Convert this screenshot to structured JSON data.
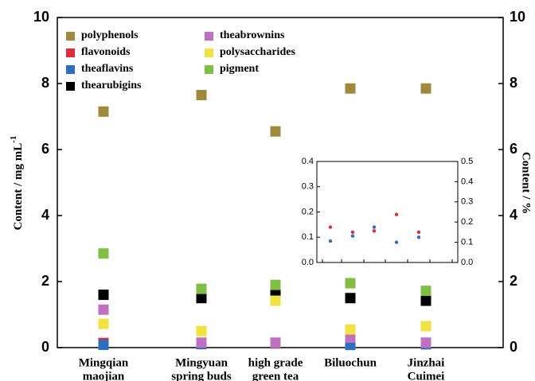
{
  "chart_data": [
    {
      "type": "scatter",
      "categories": [
        [
          "Mingqian",
          "maojian"
        ],
        [
          "Mingyuan",
          "spring buds"
        ],
        [
          "high grade",
          "green tea"
        ],
        [
          "Biluochun"
        ],
        [
          "Jinzhai",
          "Cuimei"
        ]
      ],
      "ylabel": "Content / mg mL",
      "ylabel_superscript": "-1",
      "y2label": "Content / %",
      "ylim": [
        0,
        10
      ],
      "yticks": [
        0,
        2,
        4,
        6,
        8,
        10
      ],
      "y2lim": [
        0,
        10
      ],
      "y2ticks": [
        0,
        2,
        4,
        6,
        8,
        10
      ],
      "series": [
        {
          "name": "polyphenols",
          "color": "#a08a3a",
          "values": [
            7.15,
            7.65,
            6.55,
            7.85,
            7.85
          ]
        },
        {
          "name": "flavonoids",
          "color": "#e8283a",
          "inset": true,
          "values": [
            0.14,
            0.12,
            0.125,
            0.19,
            0.12
          ]
        },
        {
          "name": "theaflavins",
          "color": "#2a6fc0",
          "inset": true,
          "values": [
            0.085,
            0.105,
            0.14,
            0.08,
            0.1
          ]
        },
        {
          "name": "thearubigins",
          "color": "#000000",
          "values": [
            1.6,
            1.5,
            1.6,
            1.5,
            1.42
          ]
        },
        {
          "name": "theabrownins",
          "color": "#c070c0",
          "values": [
            1.15,
            0.15,
            0.15,
            0.3,
            0.15
          ]
        },
        {
          "name": "polysaccharides",
          "color": "#f2e23c",
          "values": [
            0.72,
            0.5,
            1.42,
            0.55,
            0.65
          ]
        },
        {
          "name": "pigment",
          "color": "#80c040",
          "values": [
            2.85,
            1.78,
            1.9,
            1.95,
            1.72
          ]
        }
      ]
    },
    {
      "type": "inset",
      "ylim": [
        0,
        0.4
      ],
      "yticks": [
        {
          "value": 0,
          "label": "0.0"
        },
        0.1,
        0.2,
        0.3,
        0.4
      ],
      "y2lim": [
        0,
        0.5
      ],
      "y2ticks": [
        {
          "value": 0,
          "label": "0.0"
        },
        0.1,
        0.2,
        0.3,
        0.4,
        0.5
      ]
    }
  ]
}
